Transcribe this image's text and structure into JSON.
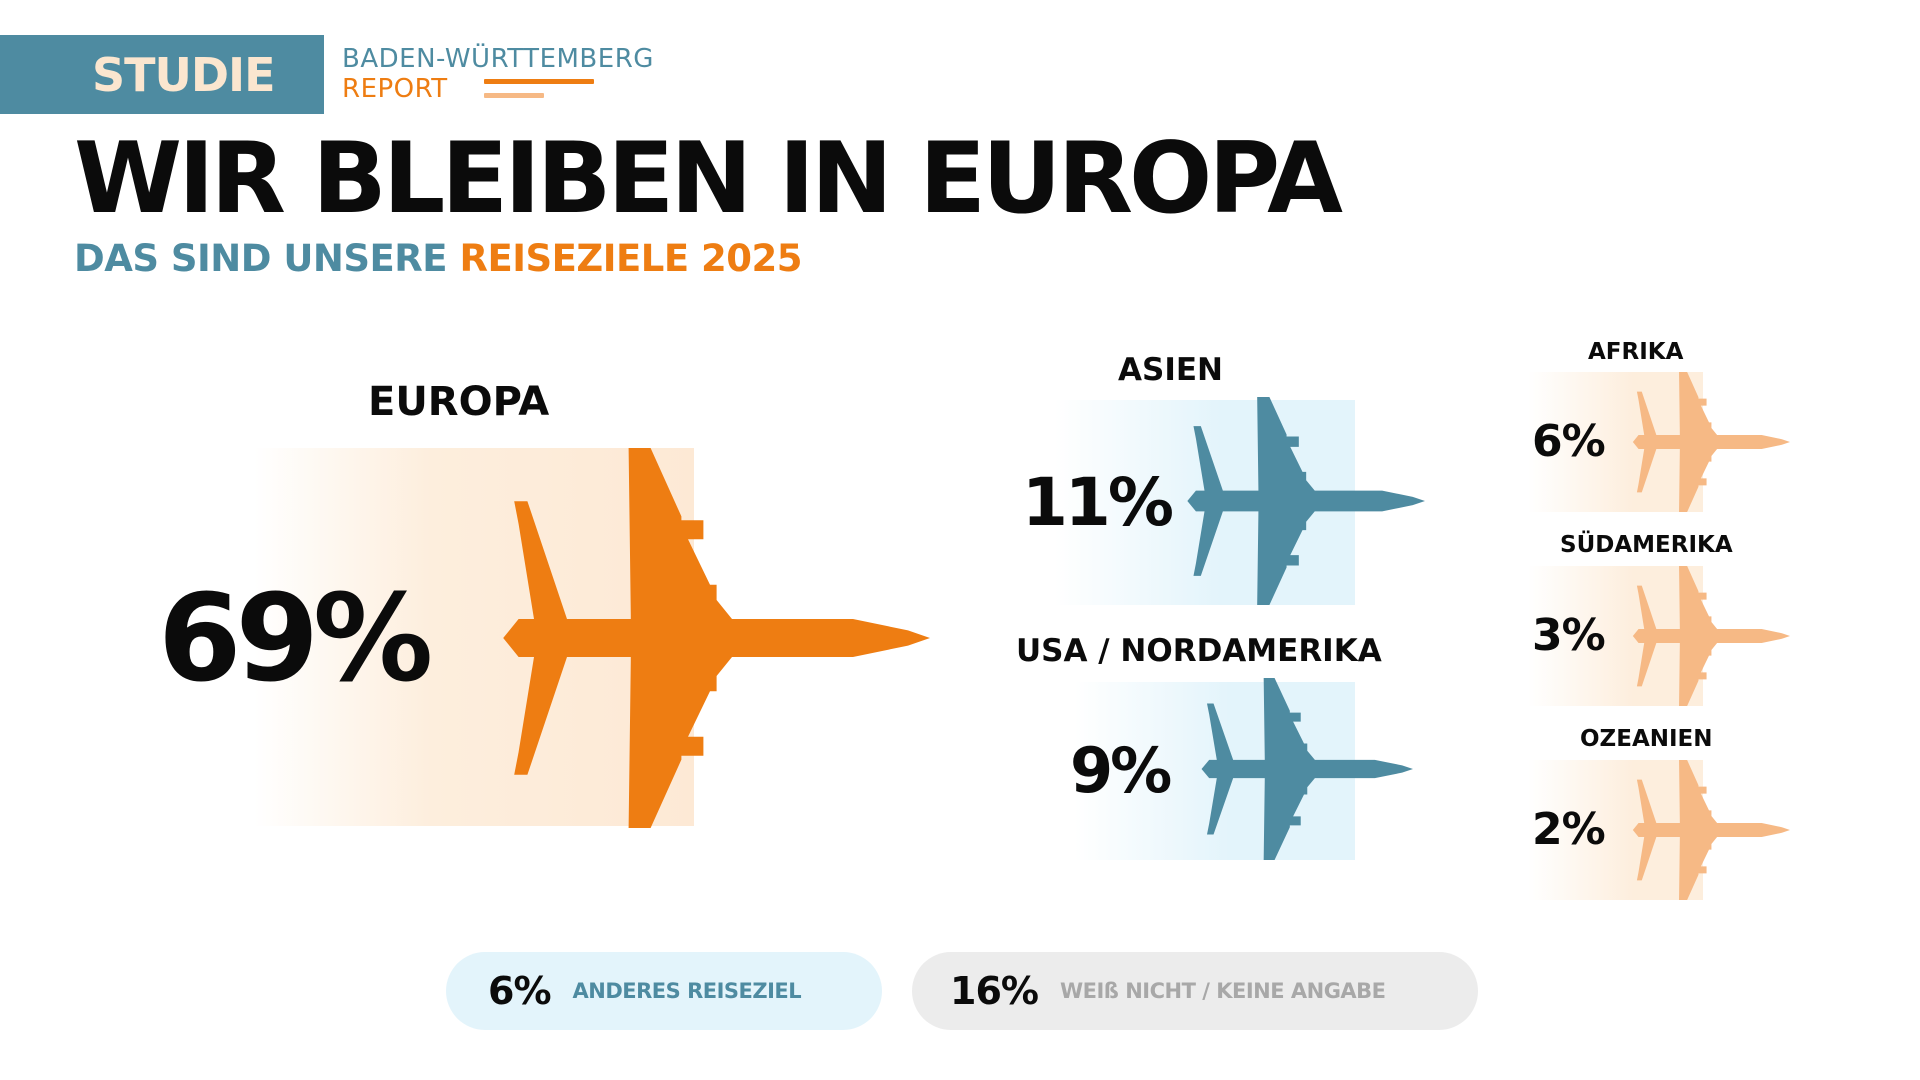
{
  "header": {
    "badge": "STUDIE",
    "brand_line1": "BADEN-WÜRTTEMBERG",
    "brand_line2": "REPORT"
  },
  "title": "WIR BLEIBEN IN EUROPA",
  "subtitle": {
    "part1": "DAS SIND UNSERE",
    "part2": "REISEZIELE 2025"
  },
  "colors": {
    "teal": "#4e8ba1",
    "orange": "#ee7d12",
    "light_orange": "#f6b985",
    "light_blue_bg": "#e3f4fb",
    "light_gray_bg": "#ececec"
  },
  "chart_data": {
    "type": "pictogram",
    "title": "Reiseziele 2025",
    "unit": "%",
    "categories": [
      "EUROPA",
      "ASIEN",
      "USA / NORDAMERIKA",
      "AFRIKA",
      "SÜDAMERIKA",
      "OZEANIEN"
    ],
    "values": [
      69,
      11,
      9,
      6,
      3,
      2
    ],
    "labels": [
      "69%",
      "11%",
      "9%",
      "6%",
      "3%",
      "2%"
    ],
    "extra": [
      {
        "name": "ANDERES REISEZIEL",
        "value": 6,
        "label": "6%"
      },
      {
        "name": "WEIß NICHT / KEINE ANGABE",
        "value": 16,
        "label": "16%"
      }
    ]
  }
}
